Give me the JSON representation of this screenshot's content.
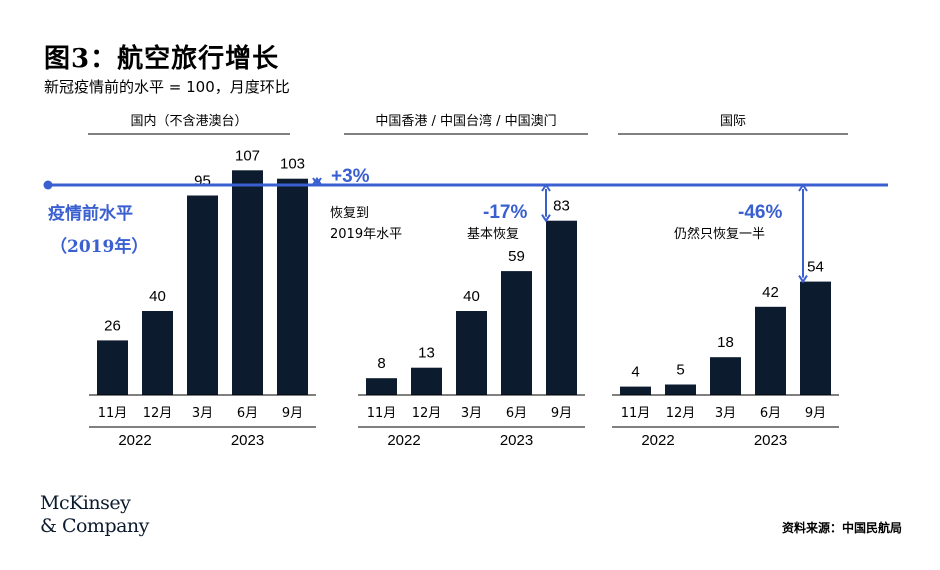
{
  "title": "图3：航空旅行增长",
  "subtitle": "新冠疫情前的水平 = 100，月度环比",
  "source": "资料来源：中国民航局",
  "logo": {
    "line1": "McKinsey",
    "line2": "& Company"
  },
  "colors": {
    "bar": "#0d1b2e",
    "accent": "#3a5fd0"
  },
  "chart_data": {
    "type": "bar",
    "baseline": {
      "value": 100,
      "label_line1": "疫情前水平",
      "label_line2": "（2019年）"
    },
    "panels": [
      {
        "name": "国内（不含港澳台）",
        "categories": [
          "11月",
          "12月",
          "3月",
          "6月",
          "9月"
        ],
        "values": [
          26,
          40,
          95,
          107,
          103
        ],
        "years": [
          {
            "label": "2022",
            "span": [
              0,
              1
            ]
          },
          {
            "label": "2023",
            "span": [
              2,
              4
            ]
          }
        ],
        "change": "+3%",
        "note": [
          "恢复到",
          "2019年水平"
        ]
      },
      {
        "name": "中国香港 / 中国台湾 / 中国澳门",
        "categories": [
          "11月",
          "12月",
          "3月",
          "6月",
          "9月"
        ],
        "values": [
          8,
          13,
          40,
          59,
          83
        ],
        "years": [
          {
            "label": "2022",
            "span": [
              0,
              1
            ]
          },
          {
            "label": "2023",
            "span": [
              2,
              4
            ]
          }
        ],
        "change": "-17%",
        "note": [
          "基本恢复"
        ]
      },
      {
        "name": "国际",
        "categories": [
          "11月",
          "12月",
          "3月",
          "6月",
          "9月"
        ],
        "values": [
          4,
          5,
          18,
          42,
          54
        ],
        "years": [
          {
            "label": "2022",
            "span": [
              0,
              1
            ]
          },
          {
            "label": "2023",
            "span": [
              2,
              4
            ]
          }
        ],
        "change": "-46%",
        "note": [
          "仍然只恢复一半"
        ]
      }
    ]
  }
}
